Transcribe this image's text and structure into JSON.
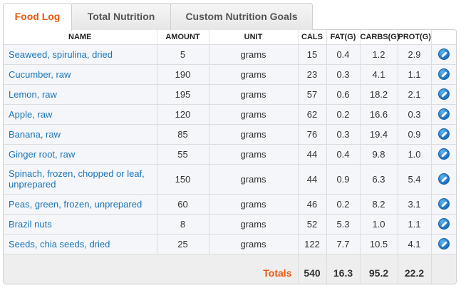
{
  "tabs": [
    {
      "label": "Food Log",
      "active": true
    },
    {
      "label": "Total Nutrition",
      "active": false
    },
    {
      "label": "Custom Nutrition Goals",
      "active": false
    }
  ],
  "columns": {
    "name": "NAME",
    "amount": "AMOUNT",
    "unit": "UNIT",
    "cals": "CALS",
    "fat": "FAT(G)",
    "carbs": "CARBS(G)",
    "prot": "PROT(G)"
  },
  "rows": [
    {
      "name": "Seaweed, spirulina, dried",
      "amount": "5",
      "unit": "grams",
      "cals": "15",
      "fat": "0.4",
      "carbs": "1.2",
      "prot": "2.9"
    },
    {
      "name": "Cucumber, raw",
      "amount": "190",
      "unit": "grams",
      "cals": "23",
      "fat": "0.3",
      "carbs": "4.1",
      "prot": "1.1"
    },
    {
      "name": "Lemon, raw",
      "amount": "195",
      "unit": "grams",
      "cals": "57",
      "fat": "0.6",
      "carbs": "18.2",
      "prot": "2.1"
    },
    {
      "name": "Apple, raw",
      "amount": "120",
      "unit": "grams",
      "cals": "62",
      "fat": "0.2",
      "carbs": "16.6",
      "prot": "0.3"
    },
    {
      "name": "Banana, raw",
      "amount": "85",
      "unit": "grams",
      "cals": "76",
      "fat": "0.3",
      "carbs": "19.4",
      "prot": "0.9"
    },
    {
      "name": "Ginger root, raw",
      "amount": "55",
      "unit": "grams",
      "cals": "44",
      "fat": "0.4",
      "carbs": "9.8",
      "prot": "1.0"
    },
    {
      "name": "Spinach, frozen, chopped or leaf, unprepared",
      "amount": "150",
      "unit": "grams",
      "cals": "44",
      "fat": "0.9",
      "carbs": "6.3",
      "prot": "5.4"
    },
    {
      "name": "Peas, green, frozen, unprepared",
      "amount": "60",
      "unit": "grams",
      "cals": "46",
      "fat": "0.2",
      "carbs": "8.2",
      "prot": "3.1"
    },
    {
      "name": "Brazil nuts",
      "amount": "8",
      "unit": "grams",
      "cals": "52",
      "fat": "5.3",
      "carbs": "1.0",
      "prot": "1.1"
    },
    {
      "name": "Seeds, chia seeds, dried",
      "amount": "25",
      "unit": "grams",
      "cals": "122",
      "fat": "7.7",
      "carbs": "10.5",
      "prot": "4.1"
    }
  ],
  "totals": {
    "label": "Totals",
    "cals": "540",
    "fat": "16.3",
    "carbs": "95.2",
    "prot": "22.2"
  },
  "icons": {
    "edit": "pencil-edit-icon"
  },
  "colors": {
    "accent": "#e8570e",
    "link": "#1a74b8",
    "edit_icon": "#1a6fc0"
  }
}
